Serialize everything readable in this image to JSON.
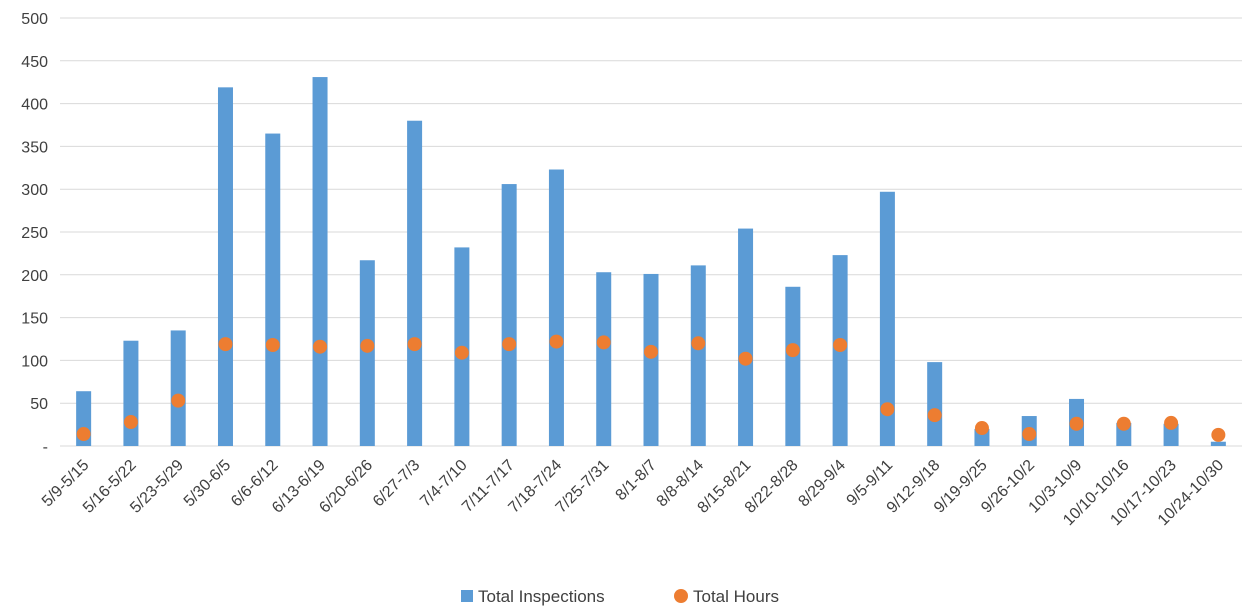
{
  "chart_data": {
    "type": "bar",
    "categories": [
      "5/9-5/15",
      "5/16-5/22",
      "5/23-5/29",
      "5/30-6/5",
      "6/6-6/12",
      "6/13-6/19",
      "6/20-6/26",
      "6/27-7/3",
      "7/4-7/10",
      "7/11-7/17",
      "7/18-7/24",
      "7/25-7/31",
      "8/1-8/7",
      "8/8-8/14",
      "8/15-8/21",
      "8/22-8/28",
      "8/29-9/4",
      "9/5-9/11",
      "9/12-9/18",
      "9/19-9/25",
      "9/26-10/2",
      "10/3-10/9",
      "10/10-10/16",
      "10/17-10/23",
      "10/24-10/30"
    ],
    "series": [
      {
        "name": "Total Inspections",
        "type": "bar",
        "color": "#5B9BD5",
        "values": [
          64,
          123,
          135,
          419,
          365,
          431,
          217,
          380,
          232,
          306,
          323,
          203,
          201,
          211,
          254,
          186,
          223,
          297,
          98,
          20,
          35,
          55,
          27,
          26,
          5
        ]
      },
      {
        "name": "Total Hours",
        "type": "scatter",
        "color": "#ED7D31",
        "values": [
          14,
          28,
          53,
          119,
          118,
          116,
          117,
          119,
          109,
          119,
          122,
          121,
          110,
          120,
          102,
          112,
          118,
          43,
          36,
          21,
          14,
          26,
          26,
          27,
          13
        ]
      }
    ],
    "ylim": [
      0,
      500
    ],
    "yticks": [
      "-",
      "50",
      "100",
      "150",
      "200",
      "250",
      "300",
      "350",
      "400",
      "450",
      "500"
    ],
    "grid": true,
    "legend_position": "bottom"
  }
}
